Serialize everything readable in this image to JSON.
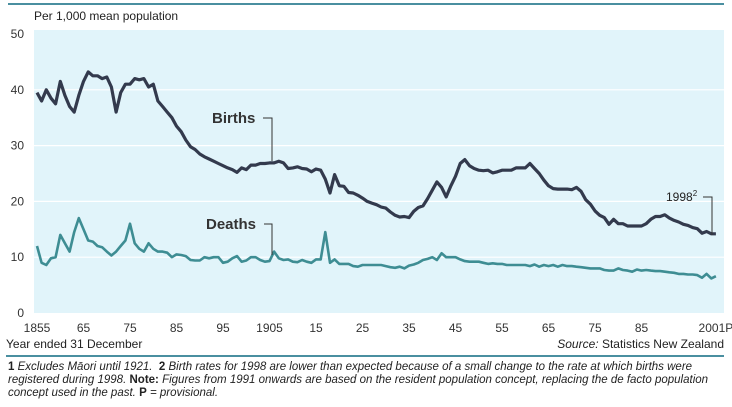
{
  "chart_data": {
    "type": "line",
    "ylabel": "Per 1,000 mean population",
    "xlabel": "Year ended 31 December",
    "source_prefix": "Source:",
    "source": "Statistics New Zealand",
    "ylim": [
      0,
      50
    ],
    "yticks": [
      "0",
      "10",
      "20",
      "30",
      "40",
      "50"
    ],
    "xticks": [
      {
        "year": 1855,
        "label": "1855"
      },
      {
        "year": 1865,
        "label": "65"
      },
      {
        "year": 1875,
        "label": "75"
      },
      {
        "year": 1885,
        "label": "85"
      },
      {
        "year": 1895,
        "label": "95"
      },
      {
        "year": 1905,
        "label": "1905"
      },
      {
        "year": 1915,
        "label": "15"
      },
      {
        "year": 1925,
        "label": "25"
      },
      {
        "year": 1935,
        "label": "35"
      },
      {
        "year": 1945,
        "label": "45"
      },
      {
        "year": 1955,
        "label": "55"
      },
      {
        "year": 1965,
        "label": "65"
      },
      {
        "year": 1975,
        "label": "75"
      },
      {
        "year": 1985,
        "label": "85"
      },
      {
        "year": 2001,
        "label": "2001P"
      }
    ],
    "grid": true,
    "annotation": {
      "text": "1998",
      "sup": "2"
    },
    "x": [
      1855,
      1856,
      1857,
      1858,
      1859,
      1860,
      1861,
      1862,
      1863,
      1864,
      1865,
      1866,
      1867,
      1868,
      1869,
      1870,
      1871,
      1872,
      1873,
      1874,
      1875,
      1876,
      1877,
      1878,
      1879,
      1880,
      1881,
      1882,
      1883,
      1884,
      1885,
      1886,
      1887,
      1888,
      1889,
      1890,
      1891,
      1892,
      1893,
      1894,
      1895,
      1896,
      1897,
      1898,
      1899,
      1900,
      1901,
      1902,
      1903,
      1904,
      1905,
      1906,
      1907,
      1908,
      1909,
      1910,
      1911,
      1912,
      1913,
      1914,
      1915,
      1916,
      1917,
      1918,
      1919,
      1920,
      1921,
      1922,
      1923,
      1924,
      1925,
      1926,
      1927,
      1928,
      1929,
      1930,
      1931,
      1932,
      1933,
      1934,
      1935,
      1936,
      1937,
      1938,
      1939,
      1940,
      1941,
      1942,
      1943,
      1944,
      1945,
      1946,
      1947,
      1948,
      1949,
      1950,
      1951,
      1952,
      1953,
      1954,
      1955,
      1956,
      1957,
      1958,
      1959,
      1960,
      1961,
      1962,
      1963,
      1964,
      1965,
      1966,
      1967,
      1968,
      1969,
      1970,
      1971,
      1972,
      1973,
      1974,
      1975,
      1976,
      1977,
      1978,
      1979,
      1980,
      1981,
      1982,
      1983,
      1984,
      1985,
      1986,
      1987,
      1988,
      1989,
      1990,
      1991,
      1992,
      1993,
      1994,
      1995,
      1996,
      1997,
      1998,
      1999,
      2000,
      2001
    ],
    "series": [
      {
        "name": "Births",
        "color": "#333a4d",
        "values": [
          39.5,
          38,
          40,
          38.5,
          37.5,
          41.5,
          39,
          37,
          36,
          39,
          41.5,
          43.2,
          42.5,
          42.5,
          42,
          42.3,
          40.5,
          36,
          39.5,
          41,
          41,
          42,
          41.8,
          42,
          40.5,
          41,
          38,
          37,
          36,
          35,
          33.5,
          32.5,
          31,
          29.8,
          29.3,
          28.5,
          28,
          27.6,
          27.2,
          26.8,
          26.4,
          26,
          25.7,
          25.2,
          26,
          25.7,
          26.5,
          26.5,
          26.8,
          26.8,
          26.9,
          26.9,
          27.2,
          26.9,
          25.9,
          26,
          26.2,
          25.9,
          25.8,
          25.3,
          25.8,
          25.6,
          24,
          21.5,
          24.8,
          22.8,
          22.7,
          21.6,
          21.5,
          21.1,
          20.6,
          20,
          19.7,
          19.4,
          19,
          18.8,
          18.1,
          17.5,
          17.2,
          17.3,
          17.1,
          18.2,
          18.9,
          19.2,
          20.5,
          22,
          23.5,
          22.5,
          20.8,
          22.8,
          24.5,
          26.8,
          27.5,
          26.4,
          25.9,
          25.6,
          25.5,
          25.6,
          25.1,
          25.3,
          25.6,
          25.6,
          25.6,
          26,
          26,
          26,
          26.8,
          25.9,
          25,
          23.8,
          22.8,
          22.3,
          22.2,
          22.2,
          22.2,
          22.1,
          22.5,
          21.8,
          20.3,
          19.5,
          18.3,
          17.5,
          17.1,
          15.9,
          16.8,
          16,
          16,
          15.6,
          15.6,
          15.6,
          15.6,
          16,
          16.8,
          17.3,
          17.3,
          17.6,
          17,
          16.6,
          16.3,
          15.9,
          15.7,
          15.3,
          15.1,
          14.3,
          14.6,
          14.2,
          14.2
        ]
      },
      {
        "name": "Deaths",
        "color": "#3e8d93",
        "values": [
          12,
          9,
          8.6,
          9.8,
          10,
          14,
          12.5,
          11,
          14.5,
          17,
          15,
          13,
          12.8,
          12,
          11.8,
          11,
          10.3,
          11,
          12,
          13,
          16,
          12.5,
          11.5,
          11,
          12.5,
          11.5,
          11,
          11,
          10.8,
          10,
          10.5,
          10.4,
          10.2,
          9.5,
          9.4,
          9.4,
          10,
          9.8,
          10,
          10,
          9,
          9.2,
          9.8,
          10.2,
          9.2,
          9.4,
          10,
          10,
          9.5,
          9.2,
          9.3,
          11,
          9.8,
          9.5,
          9.6,
          9.2,
          9.1,
          9.5,
          9.2,
          9,
          9.6,
          9.6,
          14.5,
          9,
          9.6,
          8.8,
          8.8,
          8.8,
          8.4,
          8.3,
          8.6,
          8.6,
          8.6,
          8.6,
          8.6,
          8.4,
          8.2,
          8.1,
          8.3,
          8,
          8.5,
          8.7,
          9,
          9.5,
          9.7,
          10,
          9.5,
          10.7,
          10,
          10,
          10,
          9.6,
          9.3,
          9.2,
          9.2,
          9.2,
          9,
          8.8,
          8.9,
          8.8,
          8.8,
          8.6,
          8.6,
          8.6,
          8.6,
          8.6,
          8.4,
          8.7,
          8.3,
          8.6,
          8.4,
          8.6,
          8.3,
          8.6,
          8.4,
          8.4,
          8.3,
          8.2,
          8.1,
          8,
          8,
          8,
          7.7,
          7.6,
          7.6,
          8,
          7.7,
          7.6,
          7.4,
          7.8,
          7.6,
          7.7,
          7.6,
          7.5,
          7.5,
          7.4,
          7.3,
          7.2,
          7,
          7,
          6.9,
          6.9,
          6.8,
          6.3,
          7,
          6.2,
          6.6
        ]
      }
    ]
  },
  "colors": {
    "rule": "#4a8fa0",
    "plot_background": "#e1f4fa",
    "gridline": "#ffffff"
  },
  "footnotes": {
    "n1_num": "1",
    "n1_text": "Excludes Māori until 1921.",
    "n2_num": "2",
    "n2_text": "Birth rates for 1998 are lower than expected because of a small change to the rate at which births were registered during 1998.",
    "note_label": "Note:",
    "note_text": "Figures from 1991 onwards are based on the resident population concept, replacing the de facto population concept used in the past.",
    "p_label": "P",
    "p_text": "= provisional."
  }
}
